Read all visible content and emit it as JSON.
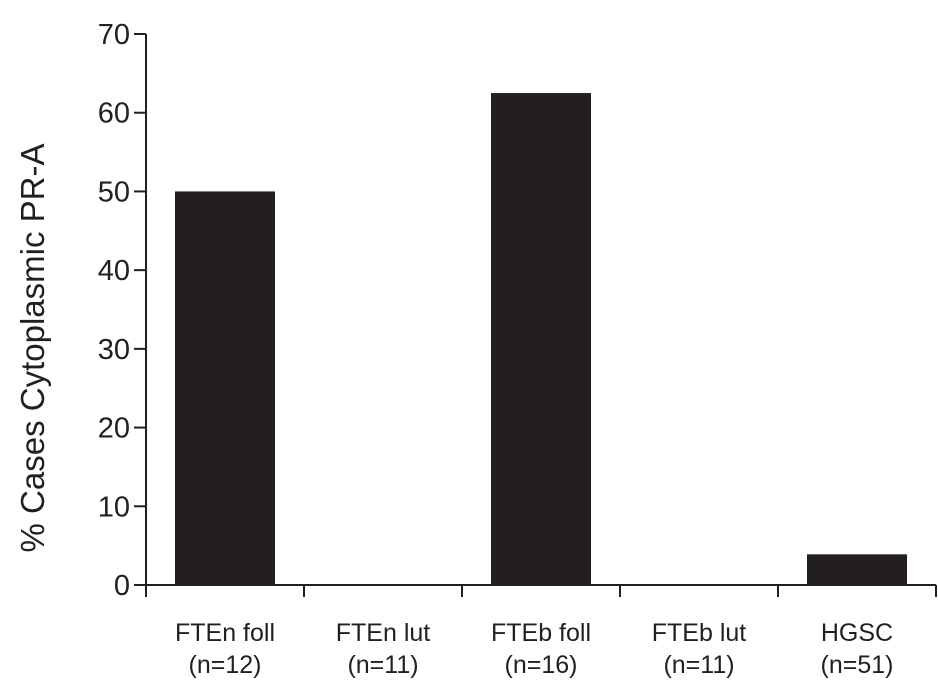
{
  "chart_data": {
    "type": "bar",
    "title": "",
    "xlabel": "",
    "ylabel": "% Cases Cytoplasmic PR-A",
    "ylim": [
      0,
      70
    ],
    "yticks": [
      0,
      10,
      20,
      30,
      40,
      50,
      60,
      70
    ],
    "categories": [
      {
        "name": "FTEn foll",
        "n": "(n=12)"
      },
      {
        "name": "FTEn lut",
        "n": "(n=11)"
      },
      {
        "name": "FTEb foll",
        "n": "(n=16)"
      },
      {
        "name": "FTEb lut",
        "n": "(n=11)"
      },
      {
        "name": "HGSC",
        "n": "(n=51)"
      }
    ],
    "values": [
      50,
      0,
      62.5,
      0,
      3.9
    ],
    "bar_color": "#231f20",
    "axis_color": "#231f20",
    "grid": false,
    "legend": "none"
  }
}
